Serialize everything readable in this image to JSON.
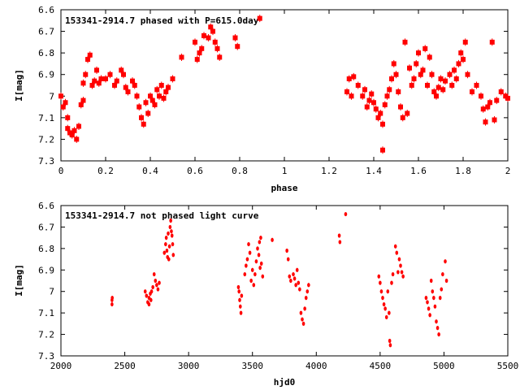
{
  "chart_data": [
    {
      "type": "scatter",
      "title": "153341-2914.7 phased with P=615.0day",
      "xlabel": "phase",
      "ylabel": "I[mag]",
      "xlim": [
        0,
        2
      ],
      "ylim": [
        6.6,
        7.3
      ],
      "y_inverted": true,
      "grid": false,
      "xticks": [
        "0",
        "0.2",
        "0.4",
        "0.6",
        "0.8",
        "1",
        "1.2",
        "1.4",
        "1.6",
        "1.8",
        "2"
      ],
      "yticks": [
        "6.6",
        "6.7",
        "6.8",
        "6.9",
        "7",
        "7.1",
        "7.2",
        "7.3"
      ],
      "color": "#ff0000",
      "points": [
        [
          0.0,
          7.0
        ],
        [
          0.01,
          7.05
        ],
        [
          0.02,
          7.03
        ],
        [
          0.03,
          7.1
        ],
        [
          0.03,
          7.15
        ],
        [
          0.04,
          7.17
        ],
        [
          0.05,
          7.18
        ],
        [
          0.06,
          7.16
        ],
        [
          0.07,
          7.2
        ],
        [
          0.08,
          7.14
        ],
        [
          0.09,
          7.04
        ],
        [
          0.1,
          6.94
        ],
        [
          0.1,
          7.02
        ],
        [
          0.11,
          6.9
        ],
        [
          0.12,
          6.83
        ],
        [
          0.13,
          6.81
        ],
        [
          0.14,
          6.95
        ],
        [
          0.15,
          6.93
        ],
        [
          0.16,
          6.88
        ],
        [
          0.17,
          6.94
        ],
        [
          0.18,
          6.92
        ],
        [
          0.2,
          6.92
        ],
        [
          0.22,
          6.9
        ],
        [
          0.24,
          6.95
        ],
        [
          0.25,
          6.93
        ],
        [
          0.27,
          6.88
        ],
        [
          0.28,
          6.9
        ],
        [
          0.29,
          6.96
        ],
        [
          0.3,
          6.98
        ],
        [
          0.32,
          6.93
        ],
        [
          0.33,
          6.95
        ],
        [
          0.34,
          7.0
        ],
        [
          0.35,
          7.05
        ],
        [
          0.36,
          7.1
        ],
        [
          0.37,
          7.13
        ],
        [
          0.38,
          7.03
        ],
        [
          0.39,
          7.08
        ],
        [
          0.4,
          7.0
        ],
        [
          0.41,
          7.02
        ],
        [
          0.42,
          7.04
        ],
        [
          0.43,
          6.97
        ],
        [
          0.44,
          7.0
        ],
        [
          0.45,
          6.95
        ],
        [
          0.46,
          7.01
        ],
        [
          0.47,
          6.98
        ],
        [
          0.48,
          6.96
        ],
        [
          0.5,
          6.92
        ],
        [
          0.54,
          6.82
        ],
        [
          0.6,
          6.75
        ],
        [
          0.61,
          6.83
        ],
        [
          0.62,
          6.8
        ],
        [
          0.63,
          6.78
        ],
        [
          0.64,
          6.72
        ],
        [
          0.66,
          6.73
        ],
        [
          0.67,
          6.68
        ],
        [
          0.68,
          6.7
        ],
        [
          0.69,
          6.75
        ],
        [
          0.7,
          6.78
        ],
        [
          0.71,
          6.82
        ],
        [
          0.78,
          6.73
        ],
        [
          0.79,
          6.77
        ],
        [
          0.89,
          6.64
        ],
        [
          1.28,
          6.98
        ],
        [
          1.29,
          6.92
        ],
        [
          1.3,
          7.0
        ],
        [
          1.31,
          6.91
        ],
        [
          1.33,
          6.95
        ],
        [
          1.35,
          7.0
        ],
        [
          1.36,
          6.97
        ],
        [
          1.37,
          7.05
        ],
        [
          1.38,
          7.02
        ],
        [
          1.39,
          6.99
        ],
        [
          1.4,
          7.03
        ],
        [
          1.41,
          7.06
        ],
        [
          1.42,
          7.1
        ],
        [
          1.43,
          7.08
        ],
        [
          1.44,
          7.13
        ],
        [
          1.44,
          7.25
        ],
        [
          1.45,
          7.04
        ],
        [
          1.46,
          7.0
        ],
        [
          1.47,
          6.97
        ],
        [
          1.48,
          6.92
        ],
        [
          1.49,
          6.85
        ],
        [
          1.5,
          6.9
        ],
        [
          1.51,
          6.98
        ],
        [
          1.52,
          7.05
        ],
        [
          1.53,
          7.1
        ],
        [
          1.54,
          6.75
        ],
        [
          1.55,
          7.08
        ],
        [
          1.56,
          6.87
        ],
        [
          1.57,
          6.95
        ],
        [
          1.58,
          6.92
        ],
        [
          1.59,
          6.85
        ],
        [
          1.6,
          6.8
        ],
        [
          1.61,
          6.9
        ],
        [
          1.62,
          6.88
        ],
        [
          1.63,
          6.78
        ],
        [
          1.64,
          6.95
        ],
        [
          1.65,
          6.82
        ],
        [
          1.66,
          6.9
        ],
        [
          1.67,
          6.98
        ],
        [
          1.68,
          7.0
        ],
        [
          1.69,
          6.96
        ],
        [
          1.7,
          6.92
        ],
        [
          1.71,
          6.97
        ],
        [
          1.72,
          6.93
        ],
        [
          1.74,
          6.9
        ],
        [
          1.75,
          6.95
        ],
        [
          1.76,
          6.88
        ],
        [
          1.77,
          6.92
        ],
        [
          1.78,
          6.85
        ],
        [
          1.79,
          6.8
        ],
        [
          1.8,
          6.83
        ],
        [
          1.81,
          6.75
        ],
        [
          1.82,
          6.9
        ],
        [
          1.84,
          6.98
        ],
        [
          1.86,
          6.95
        ],
        [
          1.88,
          7.0
        ],
        [
          1.89,
          7.06
        ],
        [
          1.9,
          7.12
        ],
        [
          1.91,
          7.05
        ],
        [
          1.92,
          7.03
        ],
        [
          1.93,
          6.75
        ],
        [
          1.94,
          7.11
        ],
        [
          1.95,
          7.02
        ],
        [
          1.97,
          6.98
        ],
        [
          1.99,
          7.0
        ],
        [
          2.0,
          7.01
        ]
      ]
    },
    {
      "type": "scatter",
      "title": "153341-2914.7 not phased light curve",
      "xlabel": "hjd0",
      "ylabel": "I[mag]",
      "xlim": [
        2000,
        5500
      ],
      "ylim": [
        6.6,
        7.3
      ],
      "y_inverted": true,
      "grid": false,
      "xticks": [
        "2000",
        "2500",
        "3000",
        "3500",
        "4000",
        "4500",
        "5000",
        "5500"
      ],
      "yticks": [
        "6.6",
        "6.7",
        "6.8",
        "6.9",
        "7",
        "7.1",
        "7.2",
        "7.3"
      ],
      "color": "#ff0000",
      "points": [
        [
          2400,
          7.04
        ],
        [
          2400,
          7.06
        ],
        [
          2402,
          7.03
        ],
        [
          2660,
          7.0
        ],
        [
          2670,
          7.02
        ],
        [
          2680,
          7.05
        ],
        [
          2690,
          7.03
        ],
        [
          2700,
          7.01
        ],
        [
          2710,
          7.0
        ],
        [
          2720,
          6.98
        ],
        [
          2730,
          6.92
        ],
        [
          2740,
          6.95
        ],
        [
          2750,
          6.97
        ],
        [
          2760,
          6.99
        ],
        [
          2770,
          6.96
        ],
        [
          2690,
          7.06
        ],
        [
          2705,
          7.04
        ],
        [
          2810,
          6.82
        ],
        [
          2820,
          6.78
        ],
        [
          2825,
          6.75
        ],
        [
          2830,
          6.81
        ],
        [
          2835,
          6.84
        ],
        [
          2840,
          6.73
        ],
        [
          2850,
          6.79
        ],
        [
          2855,
          6.7
        ],
        [
          2860,
          6.67
        ],
        [
          2865,
          6.72
        ],
        [
          2870,
          6.74
        ],
        [
          2875,
          6.78
        ],
        [
          2880,
          6.83
        ],
        [
          2845,
          6.85
        ],
        [
          3390,
          6.98
        ],
        [
          3395,
          7.0
        ],
        [
          3400,
          7.04
        ],
        [
          3405,
          7.07
        ],
        [
          3410,
          7.1
        ],
        [
          3415,
          7.02
        ],
        [
          3440,
          6.92
        ],
        [
          3450,
          6.88
        ],
        [
          3460,
          6.85
        ],
        [
          3470,
          6.78
        ],
        [
          3480,
          6.82
        ],
        [
          3490,
          6.95
        ],
        [
          3500,
          6.9
        ],
        [
          3510,
          6.97
        ],
        [
          3520,
          6.92
        ],
        [
          3530,
          6.86
        ],
        [
          3540,
          6.8
        ],
        [
          3550,
          6.83
        ],
        [
          3555,
          6.77
        ],
        [
          3560,
          6.89
        ],
        [
          3565,
          6.75
        ],
        [
          3570,
          6.87
        ],
        [
          3580,
          6.93
        ],
        [
          3655,
          6.76
        ],
        [
          3770,
          6.81
        ],
        [
          3780,
          6.85
        ],
        [
          3790,
          6.93
        ],
        [
          3800,
          6.95
        ],
        [
          3820,
          6.92
        ],
        [
          3830,
          6.94
        ],
        [
          3840,
          6.97
        ],
        [
          3850,
          6.9
        ],
        [
          3860,
          6.96
        ],
        [
          3870,
          6.99
        ],
        [
          3880,
          7.1
        ],
        [
          3890,
          7.13
        ],
        [
          3900,
          7.15
        ],
        [
          3910,
          7.08
        ],
        [
          3920,
          7.03
        ],
        [
          3930,
          7.0
        ],
        [
          3940,
          6.97
        ],
        [
          4180,
          6.74
        ],
        [
          4185,
          6.77
        ],
        [
          4230,
          6.64
        ],
        [
          4490,
          6.93
        ],
        [
          4500,
          6.96
        ],
        [
          4510,
          7.0
        ],
        [
          4520,
          7.03
        ],
        [
          4530,
          7.06
        ],
        [
          4540,
          7.08
        ],
        [
          4550,
          7.12
        ],
        [
          4560,
          7.0
        ],
        [
          4570,
          7.1
        ],
        [
          4575,
          7.23
        ],
        [
          4580,
          7.25
        ],
        [
          4590,
          6.96
        ],
        [
          4600,
          6.92
        ],
        [
          4620,
          6.79
        ],
        [
          4630,
          6.82
        ],
        [
          4640,
          6.91
        ],
        [
          4650,
          6.85
        ],
        [
          4660,
          6.88
        ],
        [
          4670,
          6.91
        ],
        [
          4680,
          6.93
        ],
        [
          4860,
          7.03
        ],
        [
          4870,
          7.05
        ],
        [
          4880,
          7.08
        ],
        [
          4890,
          7.11
        ],
        [
          4900,
          6.95
        ],
        [
          4910,
          7.0
        ],
        [
          4920,
          7.03
        ],
        [
          4930,
          7.07
        ],
        [
          4940,
          7.14
        ],
        [
          4950,
          7.17
        ],
        [
          4960,
          7.2
        ],
        [
          4970,
          7.03
        ],
        [
          4980,
          6.99
        ],
        [
          4990,
          6.92
        ],
        [
          5010,
          6.86
        ],
        [
          5020,
          6.95
        ]
      ]
    }
  ]
}
